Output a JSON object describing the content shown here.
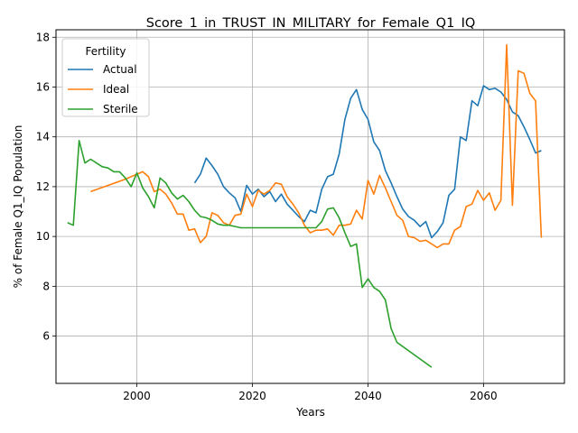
{
  "chart_data": {
    "type": "line",
    "title": "Score_1_in_TRUST_IN_MILITARY_for_Female_Q1_IQ",
    "xlabel": "Years",
    "ylabel": "% of Female Q1_IQ Population",
    "xlim": [
      1986,
      2074
    ],
    "ylim": [
      4.1,
      18.3
    ],
    "xticks": [
      2000,
      2020,
      2040,
      2060
    ],
    "yticks": [
      6,
      8,
      10,
      12,
      14,
      16,
      18
    ],
    "grid": true,
    "legend": {
      "title": "Fertility",
      "position": "top-left"
    },
    "series": [
      {
        "name": "Actual",
        "color": "#1f77b4",
        "points": [
          [
            2010,
            12.15
          ],
          [
            2011,
            12.5
          ],
          [
            2012,
            13.15
          ],
          [
            2013,
            12.85
          ],
          [
            2014,
            12.5
          ],
          [
            2015,
            12.0
          ],
          [
            2016,
            11.75
          ],
          [
            2017,
            11.55
          ],
          [
            2018,
            11.0
          ],
          [
            2019,
            12.05
          ],
          [
            2020,
            11.7
          ],
          [
            2021,
            11.9
          ],
          [
            2022,
            11.6
          ],
          [
            2023,
            11.8
          ],
          [
            2024,
            11.4
          ],
          [
            2025,
            11.7
          ],
          [
            2026,
            11.3
          ],
          [
            2027,
            11.05
          ],
          [
            2028,
            10.8
          ],
          [
            2029,
            10.6
          ],
          [
            2030,
            11.05
          ],
          [
            2031,
            10.95
          ],
          [
            2032,
            11.9
          ],
          [
            2033,
            12.4
          ],
          [
            2034,
            12.5
          ],
          [
            2035,
            13.3
          ],
          [
            2036,
            14.7
          ],
          [
            2037,
            15.55
          ],
          [
            2038,
            15.9
          ],
          [
            2039,
            15.1
          ],
          [
            2040,
            14.7
          ],
          [
            2041,
            13.8
          ],
          [
            2042,
            13.45
          ],
          [
            2043,
            12.65
          ],
          [
            2044,
            12.15
          ],
          [
            2045,
            11.6
          ],
          [
            2046,
            11.1
          ],
          [
            2047,
            10.8
          ],
          [
            2048,
            10.65
          ],
          [
            2049,
            10.4
          ],
          [
            2050,
            10.6
          ],
          [
            2051,
            9.95
          ],
          [
            2052,
            10.2
          ],
          [
            2053,
            10.55
          ],
          [
            2054,
            11.65
          ],
          [
            2055,
            11.9
          ],
          [
            2056,
            14.0
          ],
          [
            2057,
            13.85
          ],
          [
            2058,
            15.45
          ],
          [
            2059,
            15.25
          ],
          [
            2060,
            16.05
          ],
          [
            2061,
            15.9
          ],
          [
            2062,
            15.95
          ],
          [
            2063,
            15.8
          ],
          [
            2064,
            15.5
          ],
          [
            2065,
            15.0
          ],
          [
            2066,
            14.85
          ],
          [
            2067,
            14.4
          ],
          [
            2068,
            13.9
          ],
          [
            2069,
            13.35
          ],
          [
            2070,
            13.45
          ]
        ]
      },
      {
        "name": "Ideal",
        "color": "#ff7f0e",
        "points": [
          [
            1992,
            11.8
          ],
          [
            1995,
            12.05
          ],
          [
            1998,
            12.3
          ],
          [
            2001,
            12.6
          ],
          [
            2002,
            12.4
          ],
          [
            2003,
            11.8
          ],
          [
            2004,
            11.9
          ],
          [
            2005,
            11.7
          ],
          [
            2006,
            11.35
          ],
          [
            2007,
            10.9
          ],
          [
            2008,
            10.9
          ],
          [
            2009,
            10.25
          ],
          [
            2010,
            10.3
          ],
          [
            2011,
            9.75
          ],
          [
            2012,
            10.0
          ],
          [
            2013,
            10.95
          ],
          [
            2014,
            10.85
          ],
          [
            2015,
            10.55
          ],
          [
            2016,
            10.45
          ],
          [
            2017,
            10.85
          ],
          [
            2018,
            10.9
          ],
          [
            2019,
            11.7
          ],
          [
            2020,
            11.2
          ],
          [
            2021,
            11.85
          ],
          [
            2022,
            11.7
          ],
          [
            2023,
            11.85
          ],
          [
            2024,
            12.15
          ],
          [
            2025,
            12.1
          ],
          [
            2026,
            11.6
          ],
          [
            2027,
            11.3
          ],
          [
            2028,
            10.95
          ],
          [
            2029,
            10.45
          ],
          [
            2030,
            10.15
          ],
          [
            2031,
            10.25
          ],
          [
            2032,
            10.25
          ],
          [
            2033,
            10.3
          ],
          [
            2034,
            10.05
          ],
          [
            2035,
            10.45
          ],
          [
            2036,
            10.45
          ],
          [
            2037,
            10.5
          ],
          [
            2038,
            11.05
          ],
          [
            2039,
            10.7
          ],
          [
            2040,
            12.25
          ],
          [
            2041,
            11.7
          ],
          [
            2042,
            12.45
          ],
          [
            2043,
            11.95
          ],
          [
            2044,
            11.4
          ],
          [
            2045,
            10.85
          ],
          [
            2046,
            10.65
          ],
          [
            2047,
            10.0
          ],
          [
            2048,
            9.95
          ],
          [
            2049,
            9.8
          ],
          [
            2050,
            9.85
          ],
          [
            2051,
            9.7
          ],
          [
            2052,
            9.55
          ],
          [
            2053,
            9.7
          ],
          [
            2054,
            9.7
          ],
          [
            2055,
            10.25
          ],
          [
            2056,
            10.4
          ],
          [
            2057,
            11.2
          ],
          [
            2058,
            11.3
          ],
          [
            2059,
            11.85
          ],
          [
            2060,
            11.45
          ],
          [
            2061,
            11.75
          ],
          [
            2062,
            11.05
          ],
          [
            2063,
            11.45
          ],
          [
            2064,
            17.7
          ],
          [
            2065,
            11.25
          ],
          [
            2066,
            16.65
          ],
          [
            2067,
            16.55
          ],
          [
            2068,
            15.75
          ],
          [
            2069,
            15.45
          ],
          [
            2070,
            9.95
          ]
        ]
      },
      {
        "name": "Sterile",
        "color": "#2ca02c",
        "points": [
          [
            1988,
            10.55
          ],
          [
            1989,
            10.45
          ],
          [
            1990,
            13.85
          ],
          [
            1991,
            12.95
          ],
          [
            1992,
            13.1
          ],
          [
            1993,
            12.95
          ],
          [
            1994,
            12.8
          ],
          [
            1995,
            12.75
          ],
          [
            1996,
            12.6
          ],
          [
            1997,
            12.6
          ],
          [
            1998,
            12.35
          ],
          [
            1999,
            12.0
          ],
          [
            2000,
            12.55
          ],
          [
            2001,
            11.95
          ],
          [
            2002,
            11.6
          ],
          [
            2003,
            11.15
          ],
          [
            2004,
            12.35
          ],
          [
            2005,
            12.15
          ],
          [
            2006,
            11.75
          ],
          [
            2007,
            11.5
          ],
          [
            2008,
            11.65
          ],
          [
            2009,
            11.4
          ],
          [
            2010,
            11.05
          ],
          [
            2011,
            10.8
          ],
          [
            2012,
            10.75
          ],
          [
            2013,
            10.65
          ],
          [
            2014,
            10.5
          ],
          [
            2015,
            10.45
          ],
          [
            2016,
            10.45
          ],
          [
            2017,
            10.4
          ],
          [
            2018,
            10.35
          ],
          [
            2020,
            10.35
          ],
          [
            2025,
            10.35
          ],
          [
            2030,
            10.35
          ],
          [
            2031,
            10.35
          ],
          [
            2032,
            10.6
          ],
          [
            2033,
            11.1
          ],
          [
            2034,
            11.15
          ],
          [
            2035,
            10.75
          ],
          [
            2036,
            10.15
          ],
          [
            2037,
            9.6
          ],
          [
            2038,
            9.7
          ],
          [
            2039,
            7.95
          ],
          [
            2040,
            8.3
          ],
          [
            2041,
            7.95
          ],
          [
            2042,
            7.8
          ],
          [
            2043,
            7.45
          ],
          [
            2044,
            6.3
          ],
          [
            2045,
            5.75
          ],
          [
            2051,
            4.75
          ]
        ]
      }
    ]
  }
}
